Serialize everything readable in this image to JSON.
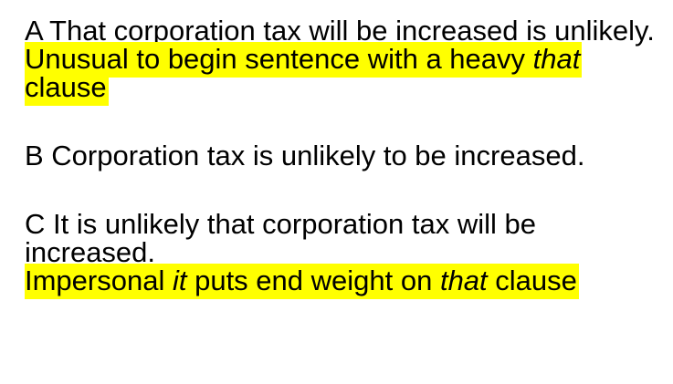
{
  "example_a": {
    "sentence": "A That corporation tax will be increased is unlikely.",
    "note": {
      "before": "Unusual to begin sentence with a heavy ",
      "italic": "that",
      "after": " clause"
    }
  },
  "example_b": {
    "sentence": "B Corporation tax is unlikely to be increased."
  },
  "example_c": {
    "sentence": "C It is unlikely that corporation tax will be increased.",
    "note": {
      "before": "Impersonal ",
      "italic1": "it",
      "middle": " puts end weight on ",
      "italic2": "that",
      "after": " clause"
    }
  },
  "colors": {
    "highlight": "#ffff00",
    "text": "#000000"
  }
}
